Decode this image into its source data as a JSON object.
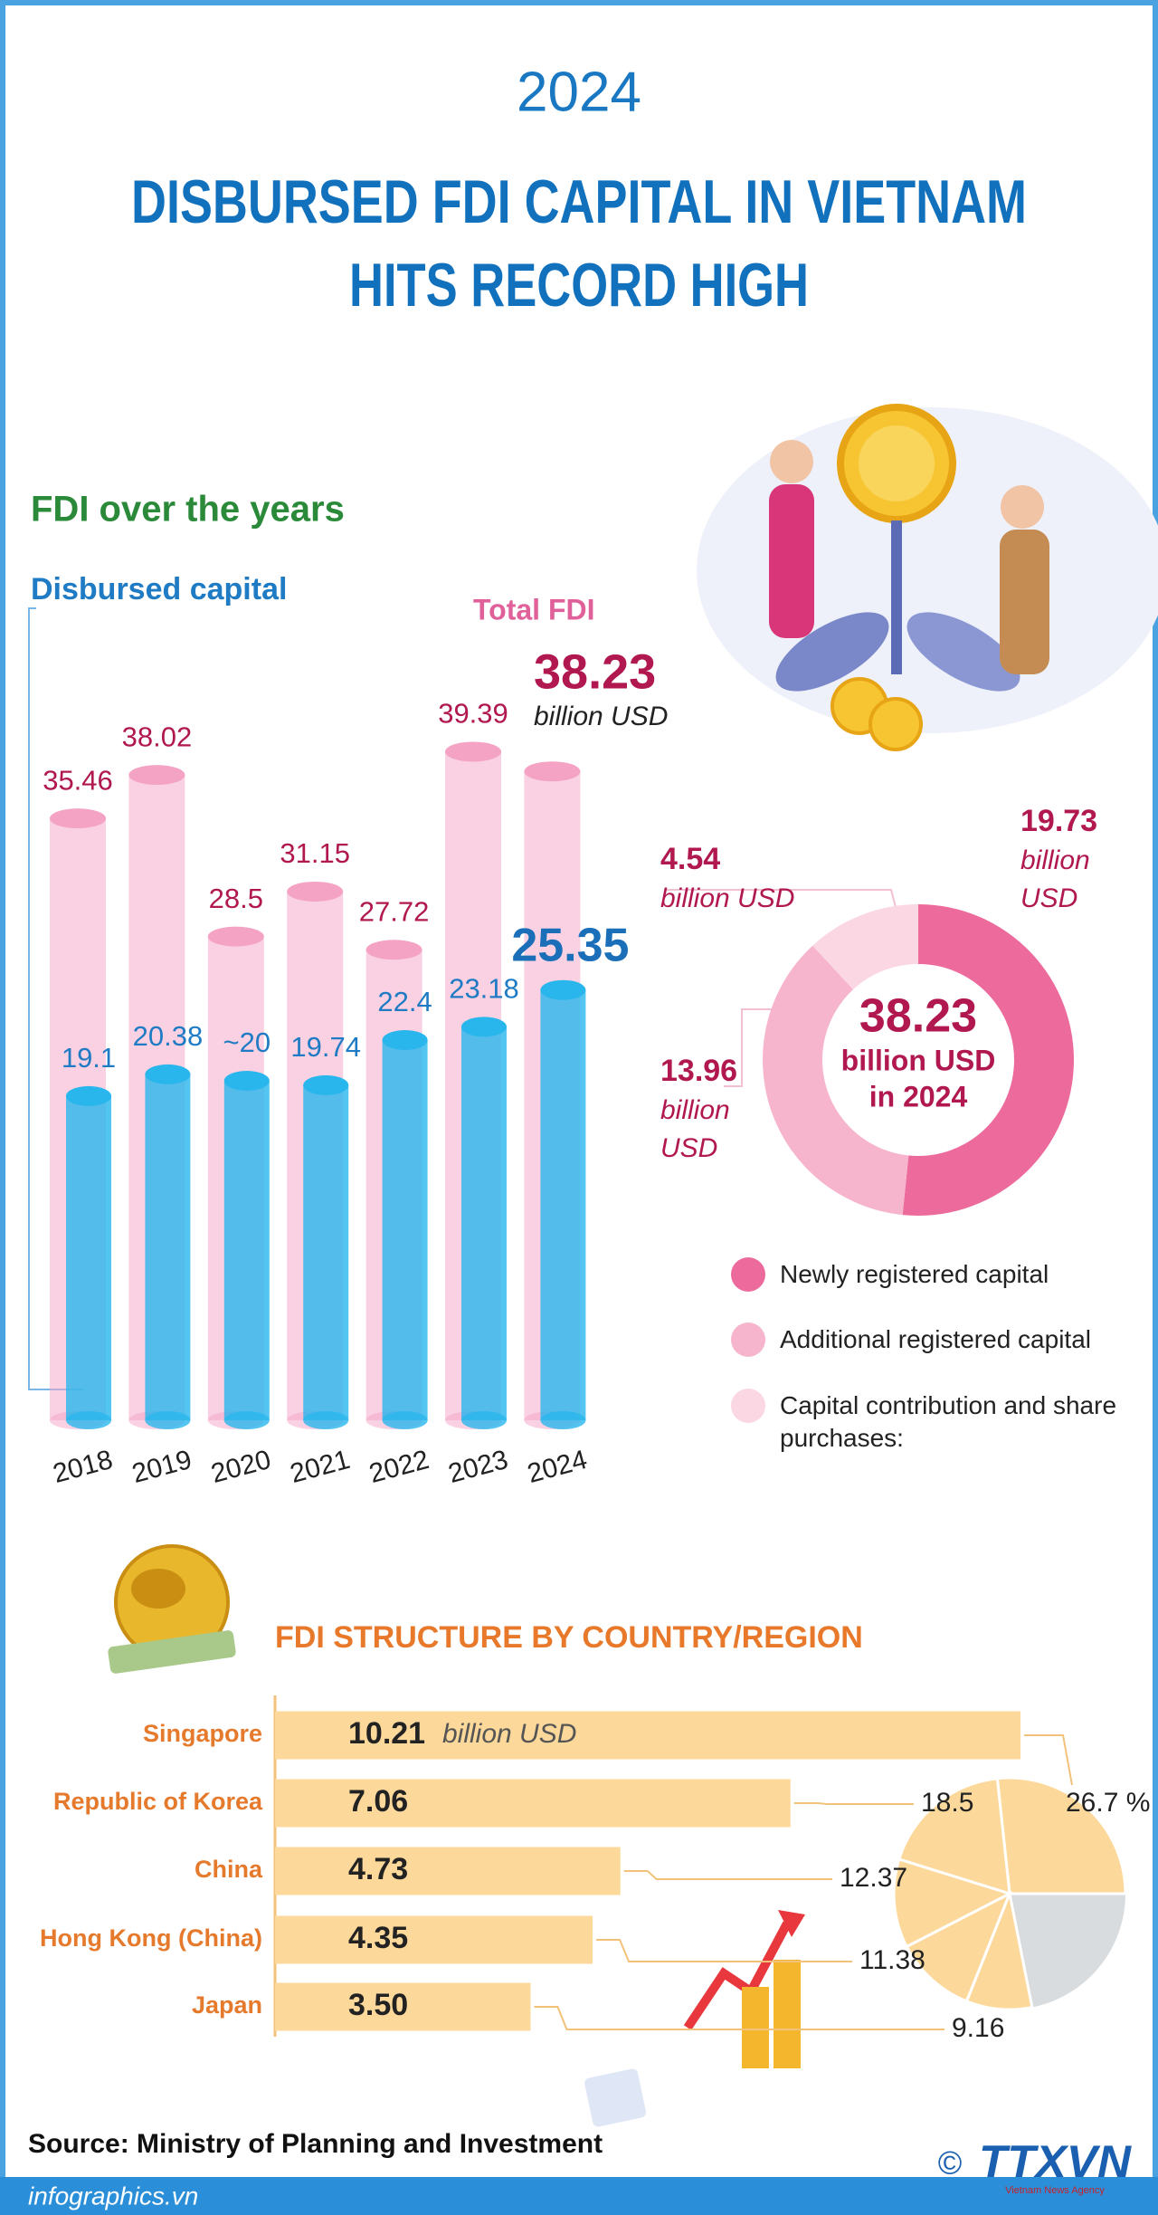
{
  "header": {
    "year": "2024",
    "title_lines": [
      "DISBURSED FDI CAPITAL IN VIETNAM",
      "HITS RECORD HIGH"
    ]
  },
  "chart_data": [
    {
      "type": "cylinder",
      "title": "FDI over the years",
      "unit": "billion USD",
      "categories": [
        "2018",
        "2019",
        "2020",
        "2021",
        "2022",
        "2023",
        "2024"
      ],
      "series": [
        {
          "name": "Total FDI",
          "color": "#f4a3c5",
          "values": [
            35.46,
            38.02,
            28.5,
            31.15,
            27.72,
            39.39,
            38.23
          ]
        },
        {
          "name": "Disbursed capital",
          "color": "#29b6ec",
          "values": [
            19.1,
            20.38,
            20,
            19.74,
            22.4,
            23.18,
            25.35
          ],
          "value_labels": [
            "19.1",
            "20.38",
            "~20",
            "19.74",
            "22.4",
            "23.18",
            "25.35"
          ]
        }
      ]
    },
    {
      "type": "donut",
      "center_value": 38.23,
      "center_lines": [
        "billion USD",
        "in 2024"
      ],
      "unit": "billion USD",
      "categories": [
        "Newly registered capital",
        "Additional registered capital",
        "Capital contribution and share purchases:"
      ],
      "values": [
        19.73,
        13.96,
        4.54
      ],
      "colors": [
        "#ec6b9c",
        "#f6b5cc",
        "#fbd6e3"
      ]
    },
    {
      "type": "hbar",
      "title": "FDI STRUCTURE BY COUNTRY/REGION",
      "unit": "billion USD",
      "color": "#fcd99a",
      "categories": [
        "Singapore",
        "Republic of Korea",
        "China",
        "Hong Kong (China)",
        "Japan"
      ],
      "values": [
        10.21,
        7.06,
        4.73,
        4.35,
        3.5
      ],
      "value_labels": [
        "10.21",
        "7.06",
        "4.73",
        "4.35",
        "3.50"
      ]
    },
    {
      "type": "pie",
      "values": [
        26.7,
        18.5,
        12.37,
        11.38,
        9.16
      ],
      "value_labels": [
        "26.7 %",
        "18.5",
        "12.37",
        "11.38",
        "9.16"
      ],
      "color": "#fcd99a"
    }
  ],
  "source": "Source: Ministry of Planning and Investment",
  "footer": {
    "site": "infographics.vn",
    "copyright": "©",
    "brand": "TTXVN",
    "brand_sub": "Vietnam News Agency"
  }
}
